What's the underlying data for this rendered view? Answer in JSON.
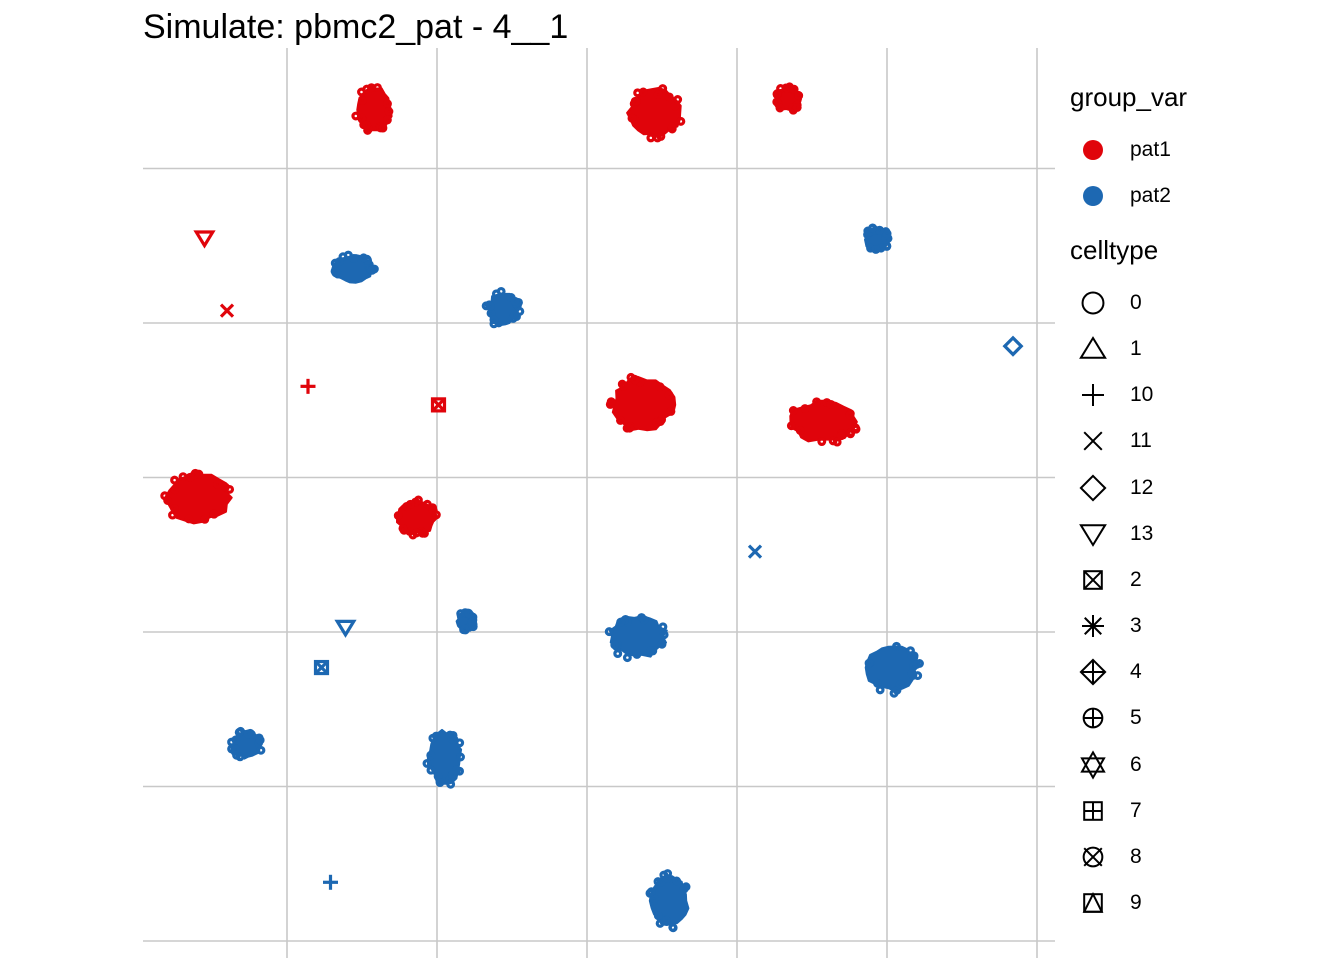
{
  "chart_data": {
    "type": "scatter",
    "title": "Simulate: pbmc2_pat - 4__1",
    "xlabel": "",
    "ylabel": "",
    "grid": true,
    "legend_position": "right",
    "xlim": [
      0,
      6
    ],
    "ylim": [
      0,
      5
    ],
    "gridlines_x": [
      1,
      2,
      3,
      4,
      5,
      6
    ],
    "gridlines_y": [
      0,
      1,
      2,
      3,
      4,
      5
    ],
    "colors": {
      "pat1": "#E0040B",
      "pat2": "#1D68B2"
    },
    "group_legend": {
      "title": "group_var",
      "entries": [
        "pat1",
        "pat2"
      ]
    },
    "shape_legend": {
      "title": "celltype",
      "entries": [
        "0",
        "1",
        "10",
        "11",
        "12",
        "13",
        "2",
        "3",
        "4",
        "5",
        "6",
        "7",
        "8",
        "9"
      ]
    },
    "clusters": [
      {
        "group": "pat1",
        "celltype": "0",
        "x": 1.58,
        "y": 5.38,
        "rx": 0.12,
        "ry": 0.15
      },
      {
        "group": "pat1",
        "celltype": "0",
        "x": 3.45,
        "y": 5.36,
        "rx": 0.18,
        "ry": 0.16
      },
      {
        "group": "pat1",
        "celltype": "0",
        "x": 4.34,
        "y": 5.45,
        "rx": 0.09,
        "ry": 0.08
      },
      {
        "group": "pat2",
        "celltype": "0",
        "x": 1.44,
        "y": 4.35,
        "rx": 0.14,
        "ry": 0.09
      },
      {
        "group": "pat2",
        "celltype": "0",
        "x": 2.44,
        "y": 4.09,
        "rx": 0.11,
        "ry": 0.11
      },
      {
        "group": "pat2",
        "celltype": "0",
        "x": 4.93,
        "y": 4.54,
        "rx": 0.08,
        "ry": 0.08
      },
      {
        "group": "pat1",
        "celltype": "0",
        "x": 3.37,
        "y": 3.47,
        "rx": 0.22,
        "ry": 0.18
      },
      {
        "group": "pat1",
        "celltype": "0",
        "x": 4.57,
        "y": 3.36,
        "rx": 0.23,
        "ry": 0.14
      },
      {
        "group": "pat1",
        "celltype": "0",
        "x": 0.41,
        "y": 2.87,
        "rx": 0.22,
        "ry": 0.17
      },
      {
        "group": "pat1",
        "celltype": "0",
        "x": 1.86,
        "y": 2.74,
        "rx": 0.14,
        "ry": 0.11
      },
      {
        "group": "pat2",
        "celltype": "0",
        "x": 2.19,
        "y": 2.07,
        "rx": 0.06,
        "ry": 0.06
      },
      {
        "group": "pat2",
        "celltype": "0",
        "x": 3.34,
        "y": 1.97,
        "rx": 0.2,
        "ry": 0.14
      },
      {
        "group": "pat2",
        "celltype": "0",
        "x": 5.03,
        "y": 1.77,
        "rx": 0.18,
        "ry": 0.16
      },
      {
        "group": "pat2",
        "celltype": "0",
        "x": 0.73,
        "y": 1.27,
        "rx": 0.1,
        "ry": 0.09
      },
      {
        "group": "pat2",
        "celltype": "0",
        "x": 2.05,
        "y": 1.19,
        "rx": 0.12,
        "ry": 0.18
      },
      {
        "group": "pat2",
        "celltype": "0",
        "x": 3.55,
        "y": 0.26,
        "rx": 0.13,
        "ry": 0.17
      }
    ],
    "points": [
      {
        "group": "pat1",
        "celltype": "13",
        "x": 0.45,
        "y": 4.55
      },
      {
        "group": "pat1",
        "celltype": "11",
        "x": 0.6,
        "y": 4.08
      },
      {
        "group": "pat1",
        "celltype": "10",
        "x": 1.14,
        "y": 3.59
      },
      {
        "group": "pat1",
        "celltype": "2",
        "x": 2.01,
        "y": 3.47
      },
      {
        "group": "pat2",
        "celltype": "12",
        "x": 5.84,
        "y": 3.85
      },
      {
        "group": "pat2",
        "celltype": "11",
        "x": 4.12,
        "y": 2.52
      },
      {
        "group": "pat2",
        "celltype": "13",
        "x": 1.39,
        "y": 2.03
      },
      {
        "group": "pat2",
        "celltype": "2",
        "x": 1.23,
        "y": 1.77
      },
      {
        "group": "pat2",
        "celltype": "10",
        "x": 1.29,
        "y": 0.38
      }
    ]
  }
}
